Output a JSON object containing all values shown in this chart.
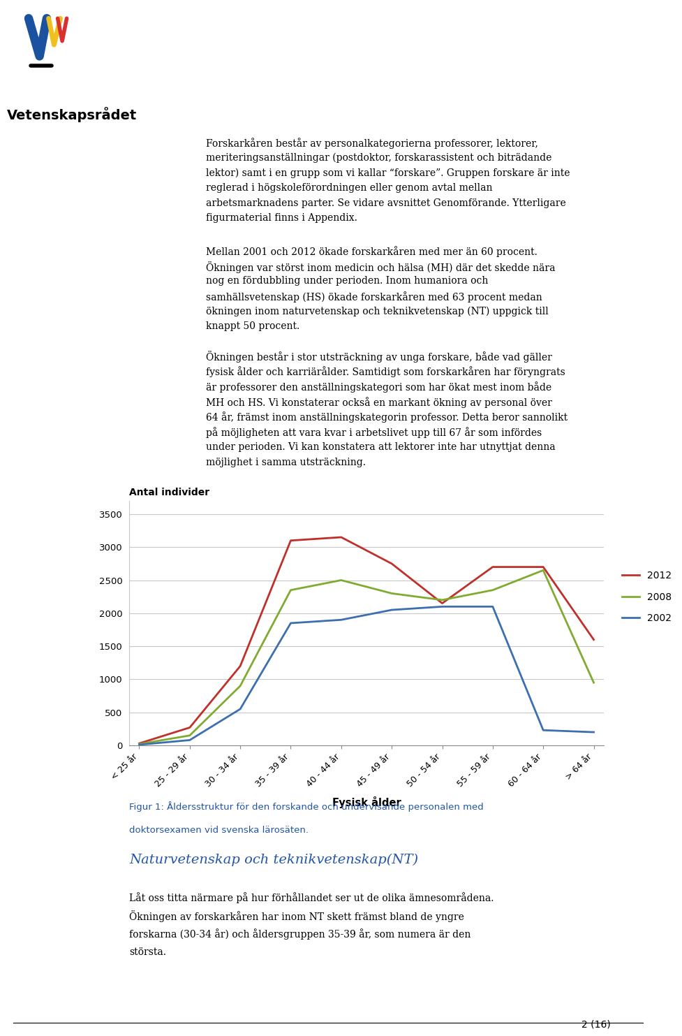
{
  "categories": [
    "< 25 år",
    "25 - 29 år",
    "30 - 34 år",
    "35 - 39 år",
    "40 - 44 år",
    "45 - 49 år",
    "50 - 54 år",
    "55 - 59 år",
    "60 - 64 år",
    "> 64 år"
  ],
  "series": {
    "2012": [
      30,
      270,
      1200,
      3100,
      3150,
      2750,
      2150,
      2700,
      2700,
      1600
    ],
    "2008": [
      20,
      150,
      900,
      2350,
      2500,
      2300,
      2200,
      2350,
      2650,
      950
    ],
    "2002": [
      10,
      80,
      550,
      1850,
      1900,
      2050,
      2100,
      2100,
      230,
      200
    ]
  },
  "line_colors": {
    "2012": "#c0302a",
    "2008": "#7fac30",
    "2002": "#3c6faf"
  },
  "line_width": 2.0,
  "ylabel": "Antal individer",
  "xlabel": "Fysisk ålder",
  "ylim": [
    0,
    3700
  ],
  "yticks": [
    0,
    500,
    1000,
    1500,
    2000,
    2500,
    3000,
    3500
  ],
  "legend_labels": [
    "2012",
    "2008",
    "2002"
  ],
  "legend_colors": [
    "#c0302a",
    "#7fac30",
    "#3c6faf"
  ],
  "fig_caption_line1": "Figur 1: Åldersstruktur för den forskande och undervisande personalen med",
  "fig_caption_line2": "doktorsexamen vid svenska lärosäten.",
  "section_title": "Naturvetenskap och teknikvetenskap(NT)",
  "bottom_text_lines": [
    "Låt oss titta närmare på hur förhållandet ser ut de olika ämnesområdena.",
    "Ökningen av forskarkåren har inom NT skett främst bland de yngre",
    "forskarna (30-34 år) och åldersgruppen 35-39 år, som numera är den",
    "största."
  ],
  "page_text": "2 (16)",
  "background_color": "#ffffff",
  "grid_color": "#c8c8c8",
  "header_text_lines": [
    "Forskarkåren består av personalkategorierna professorer, lektorer,",
    "meriteringsanställningar (postdoktor, forskarassistent och biträdande",
    "lektor) samt i en grupp som vi kallar “forskare”. Gruppen forskare är inte",
    "reglerad i högskoleförordningen eller genom avtal mellan",
    "arbetsmarknadens parter. Se vidare avsnittet Genomförande. Ytterligare",
    "figurmaterial finns i Appendix."
  ],
  "body_text2_lines": [
    "Mellan 2001 och 2012 ökade forskarkåren med mer än 60 procent.",
    "Ökningen var störst inom medicin och hälsa (MH) där det skedde nära",
    "nog en fördubbling under perioden. Inom humaniora och",
    "samhällsvetenskap (HS) ökade forskarkåren med 63 procent medan",
    "ökningen inom naturvetenskap och teknikvetenskap (NT) uppgick till",
    "knappt 50 procent."
  ],
  "body_text3_lines": [
    "Ökningen består i stor utsträckning av unga forskare, både vad gäller",
    "fysisk ålder och karriärålder. Samtidigt som forskarkåren har föryngrats",
    "är professorer den anställningskategori som har ökat mest inom både",
    "MH och HS. Vi konstaterar också en markant ökning av personal över",
    "64 år, främst inom anställningskategorin professor. Detta beror sannolikt",
    "på möjligheten att vara kvar i arbetslivet upp till 67 år som infördes",
    "under perioden. Vi kan konstatera att lektorer inte har utnyttjat denna",
    "möjlighet i samma utsträckning."
  ],
  "logo_colors": [
    "#1a52a0",
    "#f0c020",
    "#d93030",
    "#5faa28"
  ],
  "vetenskapsradet_text": "Vetenskapsrådet"
}
